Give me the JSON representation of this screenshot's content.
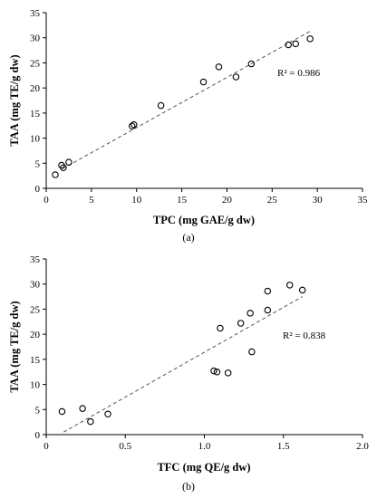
{
  "chart_data": [
    {
      "type": "scatter",
      "panel_label": "(a)",
      "xlabel": "TPC (mg GAE/g dw)",
      "ylabel": "TAA (mg TE/g dw)",
      "xlim": [
        0,
        35
      ],
      "ylim": [
        0,
        35
      ],
      "xticks": [
        "0",
        "5",
        "10",
        "15",
        "20",
        "25",
        "30",
        "35"
      ],
      "yticks": [
        "0",
        "5",
        "10",
        "15",
        "20",
        "25",
        "30",
        "35"
      ],
      "annotation": "R² = 0.986",
      "trendline": {
        "x": [
          1.8,
          29.2
        ],
        "y": [
          3.9,
          31.3
        ]
      },
      "points": [
        {
          "x": 1.0,
          "y": 2.7
        },
        {
          "x": 1.7,
          "y": 4.6
        },
        {
          "x": 1.9,
          "y": 4.1
        },
        {
          "x": 2.5,
          "y": 5.2
        },
        {
          "x": 9.5,
          "y": 12.4
        },
        {
          "x": 9.7,
          "y": 12.7
        },
        {
          "x": 12.7,
          "y": 16.5
        },
        {
          "x": 17.4,
          "y": 21.2
        },
        {
          "x": 19.1,
          "y": 24.2
        },
        {
          "x": 21.0,
          "y": 22.2
        },
        {
          "x": 22.7,
          "y": 24.8
        },
        {
          "x": 26.8,
          "y": 28.6
        },
        {
          "x": 27.6,
          "y": 28.8
        },
        {
          "x": 29.2,
          "y": 29.8
        }
      ]
    },
    {
      "type": "scatter",
      "panel_label": "(b)",
      "xlabel": "TFC (mg QE/g dw)",
      "ylabel": "TAA (mg TE/g dw)",
      "xlim": [
        0,
        2.0
      ],
      "ylim": [
        0,
        35
      ],
      "xticks": [
        "0",
        "0.5",
        "1.0",
        "1.5",
        "2.0"
      ],
      "yticks": [
        "0",
        "5",
        "10",
        "15",
        "20",
        "25",
        "30",
        "35"
      ],
      "annotation": "R² = 0.838",
      "trendline": {
        "x": [
          0.11,
          1.62
        ],
        "y": [
          0.5,
          27.5
        ]
      },
      "points": [
        {
          "x": 0.1,
          "y": 4.6
        },
        {
          "x": 0.23,
          "y": 5.2
        },
        {
          "x": 0.28,
          "y": 2.6
        },
        {
          "x": 0.39,
          "y": 4.1
        },
        {
          "x": 1.06,
          "y": 12.7
        },
        {
          "x": 1.08,
          "y": 12.5
        },
        {
          "x": 1.1,
          "y": 21.2
        },
        {
          "x": 1.15,
          "y": 12.3
        },
        {
          "x": 1.23,
          "y": 22.2
        },
        {
          "x": 1.29,
          "y": 24.2
        },
        {
          "x": 1.3,
          "y": 16.5
        },
        {
          "x": 1.4,
          "y": 24.8
        },
        {
          "x": 1.4,
          "y": 28.6
        },
        {
          "x": 1.54,
          "y": 29.8
        },
        {
          "x": 1.62,
          "y": 28.8
        }
      ]
    }
  ]
}
